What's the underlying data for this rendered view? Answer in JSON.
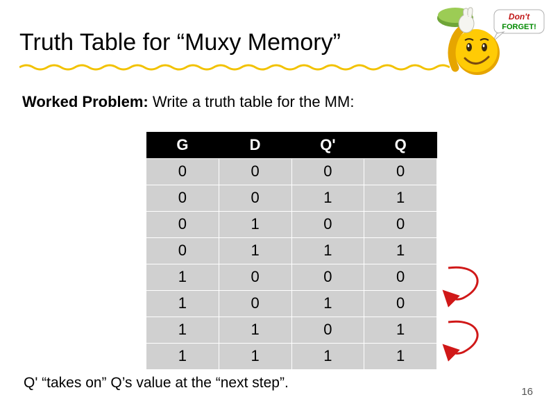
{
  "title": "Truth Table for “Muxy Memory”",
  "subhead_bold": "Worked Problem:",
  "subhead_rest": " Write a truth table for the MM:",
  "table": {
    "type": "table",
    "columns": [
      "G",
      "D",
      "Q'",
      "Q"
    ],
    "rows": [
      [
        "0",
        "0",
        "0",
        "0"
      ],
      [
        "0",
        "0",
        "1",
        "1"
      ],
      [
        "0",
        "1",
        "0",
        "0"
      ],
      [
        "0",
        "1",
        "1",
        "1"
      ],
      [
        "1",
        "0",
        "0",
        "0"
      ],
      [
        "1",
        "0",
        "1",
        "0"
      ],
      [
        "1",
        "1",
        "0",
        "1"
      ],
      [
        "1",
        "1",
        "1",
        "1"
      ]
    ],
    "header_bg": "#000000",
    "header_fg": "#ffffff",
    "cell_bg": "#d0d0d0",
    "cell_fg": "#000000",
    "font_size": 22,
    "col_width_pct": 25
  },
  "footnote": "Q' “takes on” Q’s value at the “next step”.",
  "page_number": "16",
  "underline_color": "#f2c200",
  "arrow_color": "#d01818",
  "arrow_stroke": 3,
  "reminder": {
    "dont": "Don't",
    "forget": "FORGET!",
    "bubble_bg": "#ffffff",
    "bubble_border": "#b0b0b0",
    "text_top_color": "#c01515",
    "text_bot_color": "#008a00",
    "face_color": "#ffcb05",
    "face_shadow": "#e6a500",
    "glove_color": "#f5f5f0",
    "button_green": "#8bc34a",
    "button_red": "#e03131"
  }
}
